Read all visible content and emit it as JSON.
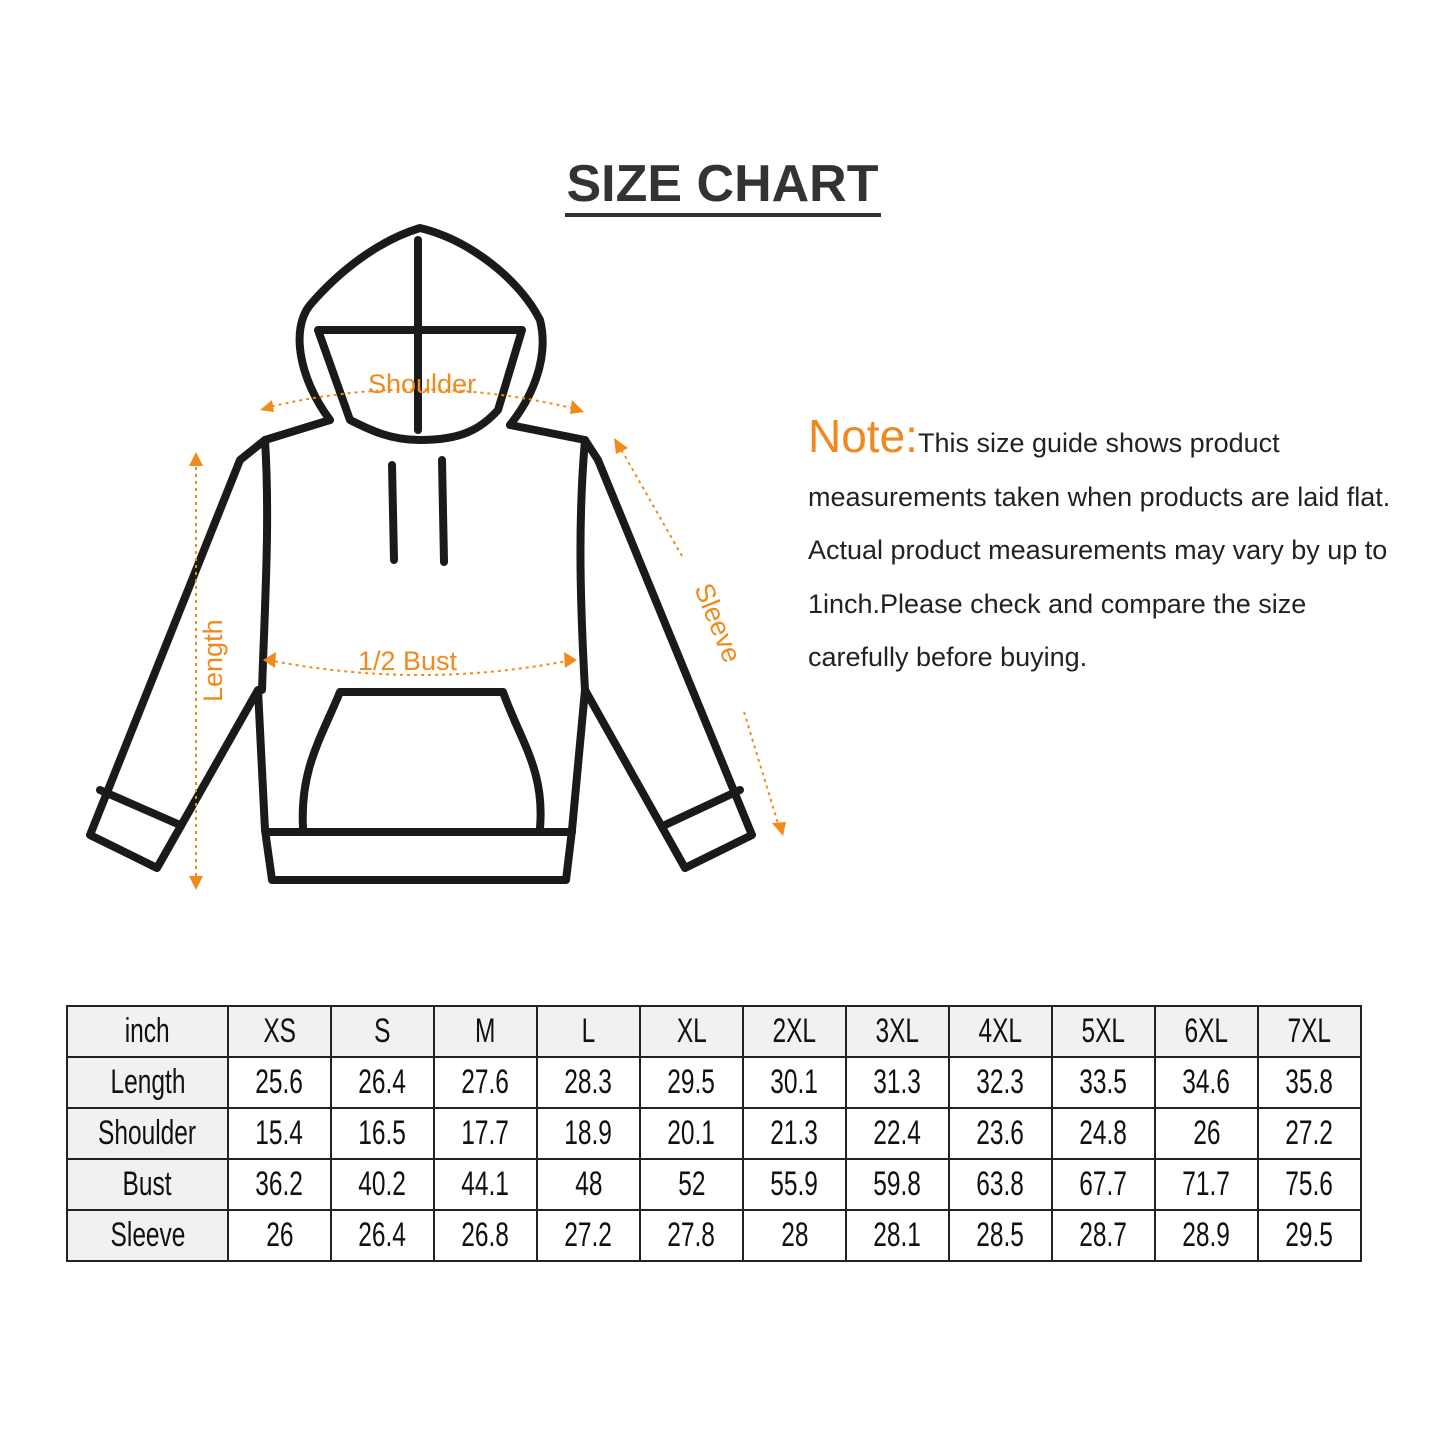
{
  "title": "SIZE CHART",
  "diagram_labels": {
    "shoulder": "Shoulder",
    "bust": "1/2 Bust",
    "length": "Length",
    "sleeve": "Sleeve"
  },
  "note": {
    "label": "Note:",
    "text": "This size guide shows product measurements taken when products are laid flat. Actual product measurements may vary by up to 1inch.Please check and compare the size carefully before buying."
  },
  "colors": {
    "accent": "#f08a1c",
    "outline": "#1a1a1a"
  },
  "table": {
    "header": [
      "inch",
      "XS",
      "S",
      "M",
      "L",
      "XL",
      "2XL",
      "3XL",
      "4XL",
      "5XL",
      "6XL",
      "7XL"
    ],
    "rows": [
      [
        "Length",
        "25.6",
        "26.4",
        "27.6",
        "28.3",
        "29.5",
        "30.1",
        "31.3",
        "32.3",
        "33.5",
        "34.6",
        "35.8"
      ],
      [
        "Shoulder",
        "15.4",
        "16.5",
        "17.7",
        "18.9",
        "20.1",
        "21.3",
        "22.4",
        "23.6",
        "24.8",
        "26",
        "27.2"
      ],
      [
        "Bust",
        "36.2",
        "40.2",
        "44.1",
        "48",
        "52",
        "55.9",
        "59.8",
        "63.8",
        "67.7",
        "71.7",
        "75.6"
      ],
      [
        "Sleeve",
        "26",
        "26.4",
        "26.8",
        "27.2",
        "27.8",
        "28",
        "28.1",
        "28.5",
        "28.7",
        "28.9",
        "29.5"
      ]
    ]
  }
}
